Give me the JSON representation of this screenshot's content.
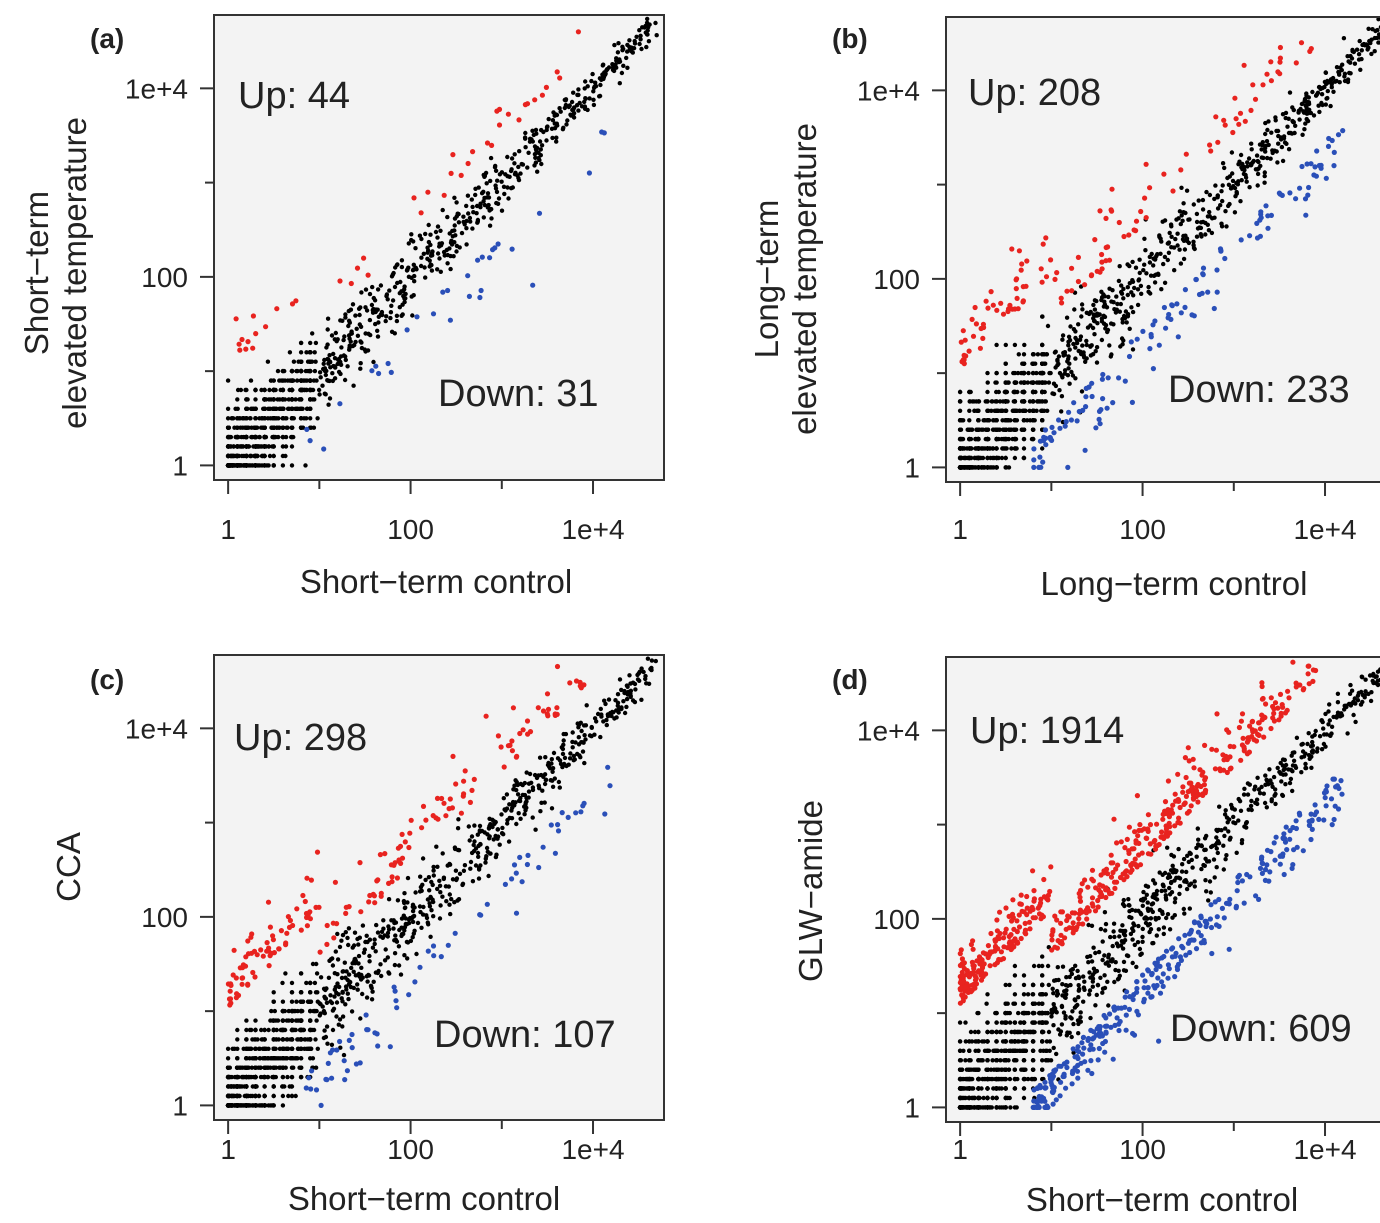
{
  "colors": {
    "up": "#e8231f",
    "down": "#2a4fb8",
    "unchanged": "#000000",
    "frame": "#333333",
    "plot_bg": "#f3f3f3"
  },
  "chart_data": [
    {
      "type": "scatter",
      "panel_label": "(a)",
      "xlabel": "Short−term control",
      "ylabel": [
        "Short−term",
        "elevated temperature"
      ],
      "x_scale": "log10",
      "y_scale": "log10",
      "xlim": [
        0.7,
        60000
      ],
      "ylim": [
        0.7,
        60000
      ],
      "x_ticks": [
        1,
        100,
        10000
      ],
      "x_tick_labels": [
        "1",
        "100",
        "1e+4"
      ],
      "y_ticks": [
        1,
        100,
        10000
      ],
      "y_tick_labels": [
        "1",
        "100",
        "1e+4"
      ],
      "up_label": "Up: 44",
      "down_label": "Down: 31",
      "series": [
        {
          "name": "Up",
          "count": 44
        },
        {
          "name": "Down",
          "count": 31
        }
      ],
      "grid": false
    },
    {
      "type": "scatter",
      "panel_label": "(b)",
      "xlabel": "Long−term control",
      "ylabel": [
        "Long−term",
        "elevated temperature"
      ],
      "x_scale": "log10",
      "y_scale": "log10",
      "xlim": [
        0.7,
        60000
      ],
      "ylim": [
        0.7,
        60000
      ],
      "x_ticks": [
        1,
        100,
        10000
      ],
      "x_tick_labels": [
        "1",
        "100",
        "1e+4"
      ],
      "y_ticks": [
        1,
        100,
        10000
      ],
      "y_tick_labels": [
        "1",
        "100",
        "1e+4"
      ],
      "up_label": "Up: 208",
      "down_label": "Down: 233",
      "series": [
        {
          "name": "Up",
          "count": 208
        },
        {
          "name": "Down",
          "count": 233
        }
      ],
      "grid": false
    },
    {
      "type": "scatter",
      "panel_label": "(c)",
      "xlabel": "Short−term control",
      "ylabel": [
        "CCA"
      ],
      "x_scale": "log10",
      "y_scale": "log10",
      "xlim": [
        0.7,
        60000
      ],
      "ylim": [
        0.7,
        60000
      ],
      "x_ticks": [
        1,
        100,
        10000
      ],
      "x_tick_labels": [
        "1",
        "100",
        "1e+4"
      ],
      "y_ticks": [
        1,
        100,
        10000
      ],
      "y_tick_labels": [
        "1",
        "100",
        "1e+4"
      ],
      "up_label": "Up: 298",
      "down_label": "Down: 107",
      "series": [
        {
          "name": "Up",
          "count": 298
        },
        {
          "name": "Down",
          "count": 107
        }
      ],
      "grid": false
    },
    {
      "type": "scatter",
      "panel_label": "(d)",
      "xlabel": "Short−term control",
      "ylabel": [
        "GLW−amide"
      ],
      "x_scale": "log10",
      "y_scale": "log10",
      "xlim": [
        0.7,
        60000
      ],
      "ylim": [
        0.7,
        60000
      ],
      "x_ticks": [
        1,
        100,
        10000
      ],
      "x_tick_labels": [
        "1",
        "100",
        "1e+4"
      ],
      "y_ticks": [
        1,
        100,
        10000
      ],
      "y_tick_labels": [
        "1",
        "100",
        "1e+4"
      ],
      "up_label": "Up: 1914",
      "down_label": "Down: 609",
      "series": [
        {
          "name": "Up",
          "count": 1914
        },
        {
          "name": "Down",
          "count": 609
        }
      ],
      "grid": false
    }
  ]
}
